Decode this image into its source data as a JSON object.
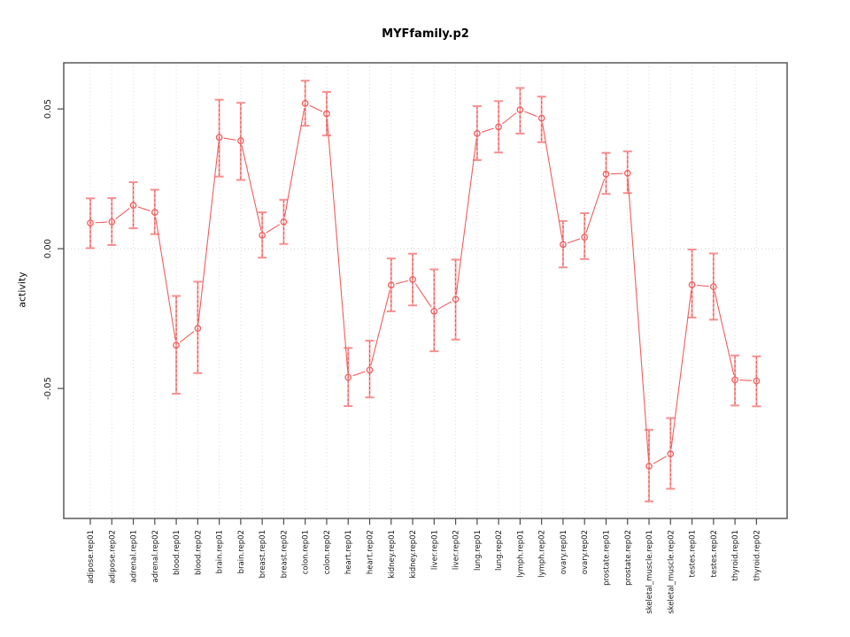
{
  "chart_data": {
    "type": "line",
    "title": "MYFfamily.p2",
    "ylabel": "activity",
    "xlabel": "",
    "ylim": [
      -0.0965,
      0.0665
    ],
    "y_ticks": [
      -0.05,
      0.0,
      0.05
    ],
    "y_tick_labels": [
      "-0.05",
      "0.00",
      "0.05"
    ],
    "legend_position": "none",
    "marker_style": "open-circle",
    "error_bars": true,
    "grid": {
      "vertical_dotted_at_each_category": true,
      "horizontal_dotted_at_zero": true
    },
    "x_tick_label_rotation_deg": 90,
    "y_tick_label_rotation_deg": 90,
    "colors": {
      "series": "#f25d5d",
      "error_bar_fill": "#f9a8a8",
      "error_bar_cap": "#f78f8f",
      "error_bar_dash": "#e85151",
      "gridline": "#dcdcdc",
      "zero_line": "#d0d0d0",
      "axis": "#4d4d4d",
      "tick_text": "#1a1a1a"
    },
    "categories": [
      "adipose.rep01",
      "adipose.rep02",
      "adrenal.rep01",
      "adrenal.rep02",
      "blood.rep01",
      "blood.rep02",
      "brain.rep01",
      "brain.rep02",
      "breast.rep01",
      "breast.rep02",
      "colon.rep01",
      "colon.rep02",
      "heart.rep01",
      "heart.rep02",
      "kidney.rep01",
      "kidney.rep02",
      "liver.rep01",
      "liver.rep02",
      "lung.rep01",
      "lung.rep02",
      "lymph.rep01",
      "lymph.rep02",
      "ovary.rep01",
      "ovary.rep02",
      "prostate.rep01",
      "prostate.rep02",
      "skeletal_muscle.rep01",
      "skeletal_muscle.rep02",
      "testes.rep01",
      "testes.rep02",
      "thyroid.rep01",
      "thyroid.rep02"
    ],
    "series": [
      {
        "name": "activity",
        "values": [
          0.0092,
          0.0096,
          0.0155,
          0.013,
          -0.0345,
          -0.0285,
          0.0398,
          0.0386,
          0.0048,
          0.0096,
          0.052,
          0.0483,
          -0.046,
          -0.0434,
          -0.013,
          -0.011,
          -0.0224,
          -0.0181,
          0.0412,
          0.0436,
          0.0497,
          0.0467,
          0.0015,
          0.0041,
          0.0267,
          0.027,
          -0.0778,
          -0.0734,
          -0.0129,
          -0.0136,
          -0.0469,
          -0.0473
        ],
        "ci_low": [
          0.0002,
          0.0013,
          0.0073,
          0.0052,
          -0.0519,
          -0.0445,
          0.0258,
          0.0246,
          -0.0032,
          0.0017,
          0.044,
          0.0405,
          -0.0563,
          -0.0532,
          -0.0224,
          -0.0203,
          -0.0367,
          -0.0325,
          0.0317,
          0.0344,
          0.0412,
          0.0381,
          -0.0067,
          -0.0037,
          0.0196,
          0.0199,
          -0.0904,
          -0.0859,
          -0.0246,
          -0.0254,
          -0.0561,
          -0.0564
        ],
        "ci_high": [
          0.018,
          0.0181,
          0.0238,
          0.0211,
          -0.0169,
          -0.0118,
          0.0533,
          0.0522,
          0.013,
          0.0175,
          0.0601,
          0.0561,
          -0.0355,
          -0.0329,
          -0.0035,
          -0.0018,
          -0.0074,
          -0.0039,
          0.051,
          0.0528,
          0.0575,
          0.0544,
          0.0099,
          0.0127,
          0.0343,
          0.0348,
          -0.0648,
          -0.0606,
          -0.0003,
          -0.0017,
          -0.0382,
          -0.0385
        ]
      }
    ]
  }
}
